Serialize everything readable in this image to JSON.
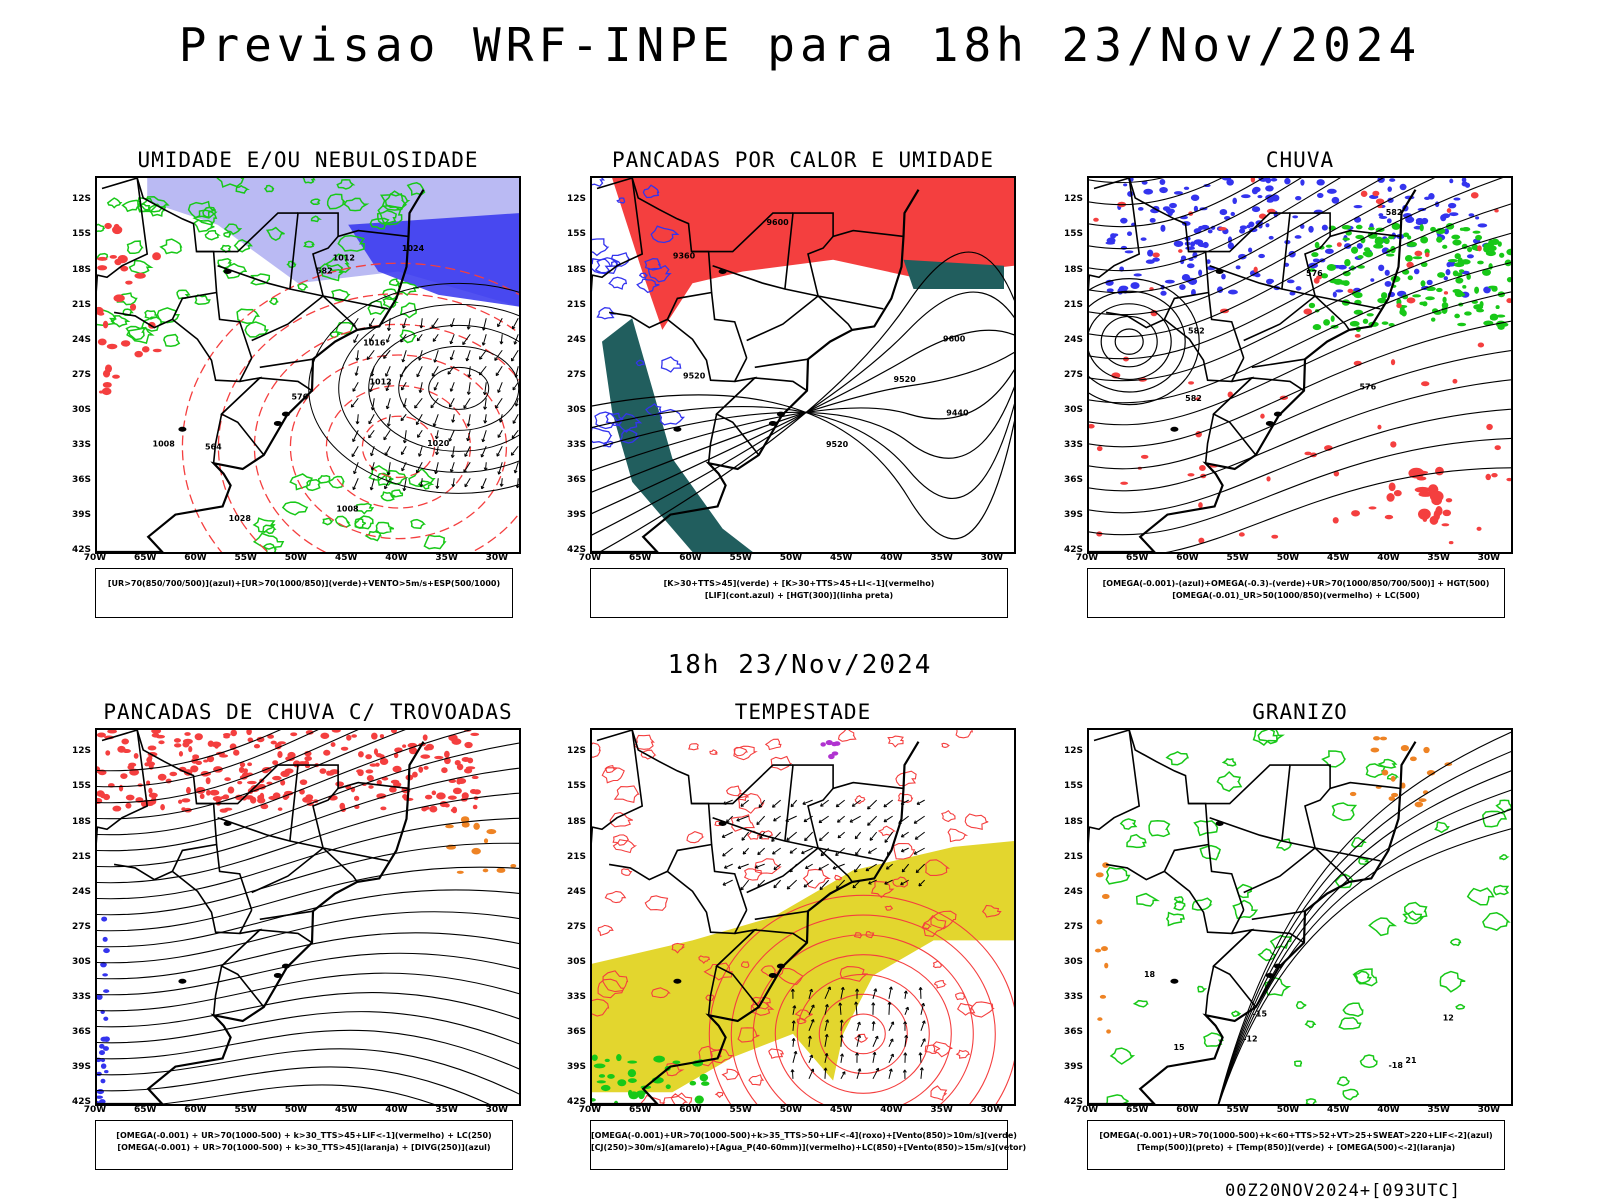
{
  "header": {
    "title": "Previsao WRF-INPE  para 18h 23/Nov/2024",
    "mid_title": "18h 23/Nov/2024",
    "run_stamp": "00Z20NOV2024+[093UTC]"
  },
  "axes": {
    "lat_labels": [
      "12S",
      "15S",
      "18S",
      "21S",
      "24S",
      "27S",
      "30S",
      "33S",
      "36S",
      "39S",
      "42S"
    ],
    "lon_labels": [
      "70W",
      "65W",
      "60W",
      "55W",
      "50W",
      "45W",
      "40W",
      "35W",
      "30W"
    ]
  },
  "colors": {
    "red": "#f43f3f",
    "green": "#18c818",
    "blue": "#3434ee",
    "lavender": "#b3b3f2",
    "teal": "#215e5e",
    "yellow": "#e3d62e",
    "orange": "#ee8324",
    "purple": "#b033d0"
  },
  "panels": [
    {
      "id": "umidade",
      "title": "UMIDADE E/OU NEBULOSIDADE",
      "legend": [
        "[UR>70(850/700/500)](azul)+[UR>70(1000/850)](verde)+VENTO>5m/s+ESP(500/1000)"
      ],
      "contour_labels": [
        "1008",
        "1008",
        "1012",
        "1012",
        "1016",
        "1020",
        "1024",
        "1028",
        "576",
        "582",
        "564"
      ]
    },
    {
      "id": "pancadas-calor",
      "title": "PANCADAS POR CALOR E UMIDADE",
      "legend": [
        "[K>30+TTS>45](verde)  +  [K>30+TTS>45+LI<-1](vermelho)",
        "[LIF](cont.azul)  +  [HGT(300)](linha preta)"
      ],
      "contour_labels": [
        "9600",
        "9520",
        "9440",
        "9360",
        "9600",
        "9520",
        "9520"
      ]
    },
    {
      "id": "chuva",
      "title": "CHUVA",
      "legend": [
        "[OMEGA(-0.001)-(azul)+OMEGA(-0.3)-(verde)+UR>70(1000/850/700/500)]  +  HGT(500)",
        "[OMEGA(-0.01)_UR>50(1000/850)(vermelho)  +  LC(500)"
      ],
      "contour_labels": [
        "582",
        "576",
        "582",
        "576",
        "582"
      ]
    },
    {
      "id": "pancadas-trovoadas",
      "title": "PANCADAS DE CHUVA C/ TROVOADAS",
      "legend": [
        "[OMEGA(-0.001)  +  UR>70(1000-500)  +  k>30_TTS>45+LIF<-1](vermelho)  +  LC(250)",
        "[OMEGA(-0.001)  +  UR>70(1000-500)  +  k>30_TTS>45](laranja)  +  [DIVG(250)](azul)"
      ],
      "contour_labels": []
    },
    {
      "id": "tempestade",
      "title": "TEMPESTADE",
      "legend": [
        "[OMEGA(-0.001)+UR>70(1000-500)+k>35_TTS>50+LIF<-4](roxo)+[Vento(850)>10m/s](verde)",
        "[CJ(250)>30m/s](amarelo)+[Agua_P(40-60mm)](vermelho)+LC(850)+[Vento(850)>15m/s](vetor)"
      ],
      "contour_labels": []
    },
    {
      "id": "granizo",
      "title": "GRANIZO",
      "legend": [
        "[OMEGA(-0.001)+UR>70(1000-500)+k<60+TTS>52+VT>25+SWEAT>220+LIF<-2](azul)",
        "[Temp(500)](preto)  +  [Temp(850)](verde)  +  [OMEGA(500)<-2](laranja)"
      ],
      "contour_labels": [
        "-12",
        "-15",
        "-18",
        "15",
        "18",
        "21",
        "12"
      ]
    }
  ]
}
